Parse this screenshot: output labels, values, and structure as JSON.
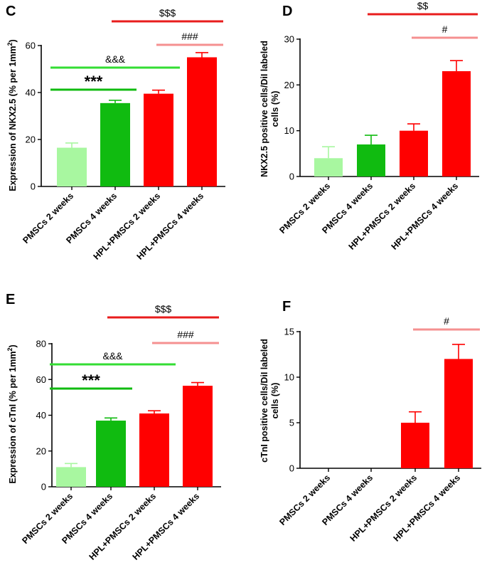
{
  "colors": {
    "light_green": "#a8f7a0",
    "green": "#10bb10",
    "red": "#ff0000",
    "dark_red": "#e81c1c",
    "pink": "#f59090",
    "bright_green": "#33dd33"
  },
  "chart_data": [
    {
      "panel": "C",
      "type": "bar",
      "categories": [
        "PMSCs 2 weeks",
        "PMSCs 4 weeks",
        "HPL+PMSCs 2 weeks",
        "HPL+PMSCs 4 weeks"
      ],
      "values": [
        16.5,
        35.5,
        39.5,
        55
      ],
      "errors": [
        2,
        1.2,
        1.5,
        2
      ],
      "ylabel": "Expression of NKX2.5 (% per 1mm²)",
      "ylim": [
        0,
        60
      ],
      "yticks": [
        "0",
        "20",
        "40",
        "60"
      ],
      "significance": [
        {
          "label": "***",
          "from": 0,
          "to": 1
        },
        {
          "label": "&&&",
          "from": 0,
          "to": 2
        },
        {
          "label": "###",
          "from": 2,
          "to": 3
        },
        {
          "label": "$$$",
          "from": 1,
          "to": 3
        }
      ]
    },
    {
      "panel": "D",
      "type": "bar",
      "categories": [
        "PMSCs 2 weeks",
        "PMSCs 4 weeks",
        "HPL+PMSCs 2 weeks",
        "HPL+PMSCs 4 weeks"
      ],
      "values": [
        4,
        7,
        10,
        23
      ],
      "errors": [
        2.5,
        2,
        1.5,
        2.3
      ],
      "ylabel": "NKX2.5 positive cells/DiI labeled cells (%)",
      "ylim": [
        0,
        30
      ],
      "yticks": [
        "0",
        "10",
        "20",
        "30"
      ],
      "significance": [
        {
          "label": "#",
          "from": 2,
          "to": 3
        },
        {
          "label": "$$",
          "from": 1,
          "to": 3
        }
      ]
    },
    {
      "panel": "E",
      "type": "bar",
      "categories": [
        "PMSCs 2 weeks",
        "PMSCs 4 weeks",
        "HPL+PMSCs 2 weeks",
        "HPL+PMSCs 4 weeks"
      ],
      "values": [
        11,
        37,
        41,
        56.5
      ],
      "errors": [
        2,
        1.5,
        1.5,
        1.8
      ],
      "ylabel": "Expression of cTnI (% per 1mm²)",
      "ylim": [
        0,
        80
      ],
      "yticks": [
        "0",
        "20",
        "40",
        "60",
        "80"
      ],
      "significance": [
        {
          "label": "***",
          "from": 0,
          "to": 1
        },
        {
          "label": "&&&",
          "from": 0,
          "to": 2
        },
        {
          "label": "###",
          "from": 2,
          "to": 3
        },
        {
          "label": "$$$",
          "from": 1,
          "to": 3
        }
      ]
    },
    {
      "panel": "F",
      "type": "bar",
      "categories": [
        "PMSCs 2 weeks",
        "PMSCs 4 weeks",
        "HPL+PMSCs 2 weeks",
        "HPL+PMSCs 4 weeks"
      ],
      "values": [
        0,
        0,
        5,
        12
      ],
      "errors": [
        0,
        0,
        1.2,
        1.6
      ],
      "ylabel": "cTnI positive cells/DiI labeled cells (%)",
      "ylim": [
        0,
        15
      ],
      "yticks": [
        "0",
        "5",
        "10",
        "15"
      ],
      "significance": [
        {
          "label": "#",
          "from": 2,
          "to": 3
        }
      ]
    }
  ]
}
